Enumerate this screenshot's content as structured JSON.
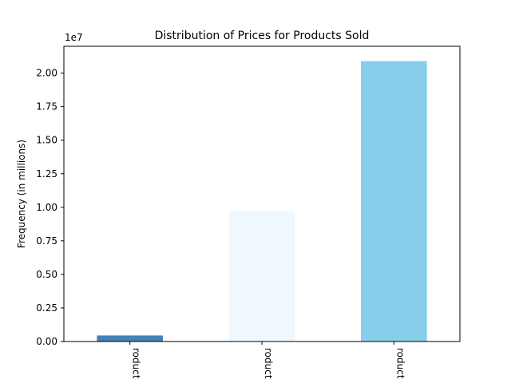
{
  "chart_data": {
    "type": "bar",
    "title": "Distribution of Prices for Products Sold",
    "xlabel": "",
    "ylabel": "Frequency (in millions)",
    "offset_text": "1e7",
    "categories": [
      "roduct",
      "roduct",
      "roduct"
    ],
    "values": [
      450000,
      9700000,
      20900000
    ],
    "colors": [
      "#4682b4",
      "#f0f8ff",
      "#87ceeb"
    ],
    "ylim": [
      0,
      22000000
    ],
    "yticks": [
      0,
      2500000,
      5000000,
      7500000,
      10000000,
      12500000,
      15000000,
      17500000,
      20000000
    ],
    "ytick_labels": [
      "0.00",
      "0.25",
      "0.50",
      "0.75",
      "1.00",
      "1.25",
      "1.50",
      "1.75",
      "2.00"
    ],
    "grid": false,
    "legend": "none"
  }
}
